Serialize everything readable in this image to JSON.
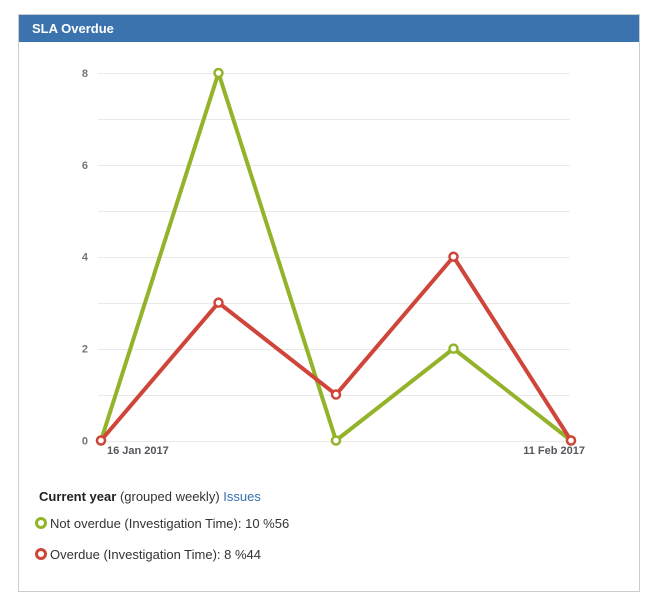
{
  "widget": {
    "title": "SLA Overdue"
  },
  "legend": {
    "period_label": "Current year",
    "grouping_label": "(grouped weekly)",
    "issues_link": "Issues",
    "series": [
      {
        "label": "Not overdue (Investigation Time): 10 %56",
        "color": "#93b32a"
      },
      {
        "label": "Overdue (Investigation Time): 8 %44",
        "color": "#d0453a"
      }
    ]
  },
  "chart_data": {
    "type": "line",
    "x": [
      1,
      2,
      3,
      4,
      5
    ],
    "x_tick_labels": [
      {
        "index": 0,
        "label": "16 Jan 2017"
      },
      {
        "index": 4,
        "label": "11 Feb 2017"
      }
    ],
    "series": [
      {
        "name": "Not overdue (Investigation Time)",
        "color": "#93b32a",
        "values": [
          0,
          8,
          0,
          2,
          0
        ]
      },
      {
        "name": "Overdue (Investigation Time)",
        "color": "#d0453a",
        "values": [
          0,
          3,
          1,
          4,
          0
        ]
      }
    ],
    "ylim": [
      0,
      8
    ],
    "y_gridline_step": 1,
    "y_labeled_ticks": [
      0,
      2,
      4,
      6,
      8
    ],
    "grid": true,
    "legend_position": "bottom"
  },
  "colors": {
    "header_bg": "#3b73af",
    "widget_border": "#cccccc",
    "gridline": "#e9e9e9",
    "y_tick_text": "#767676",
    "x_tick_text": "#54575c",
    "link": "#3572b0",
    "marker_fill": "#ffffff"
  }
}
